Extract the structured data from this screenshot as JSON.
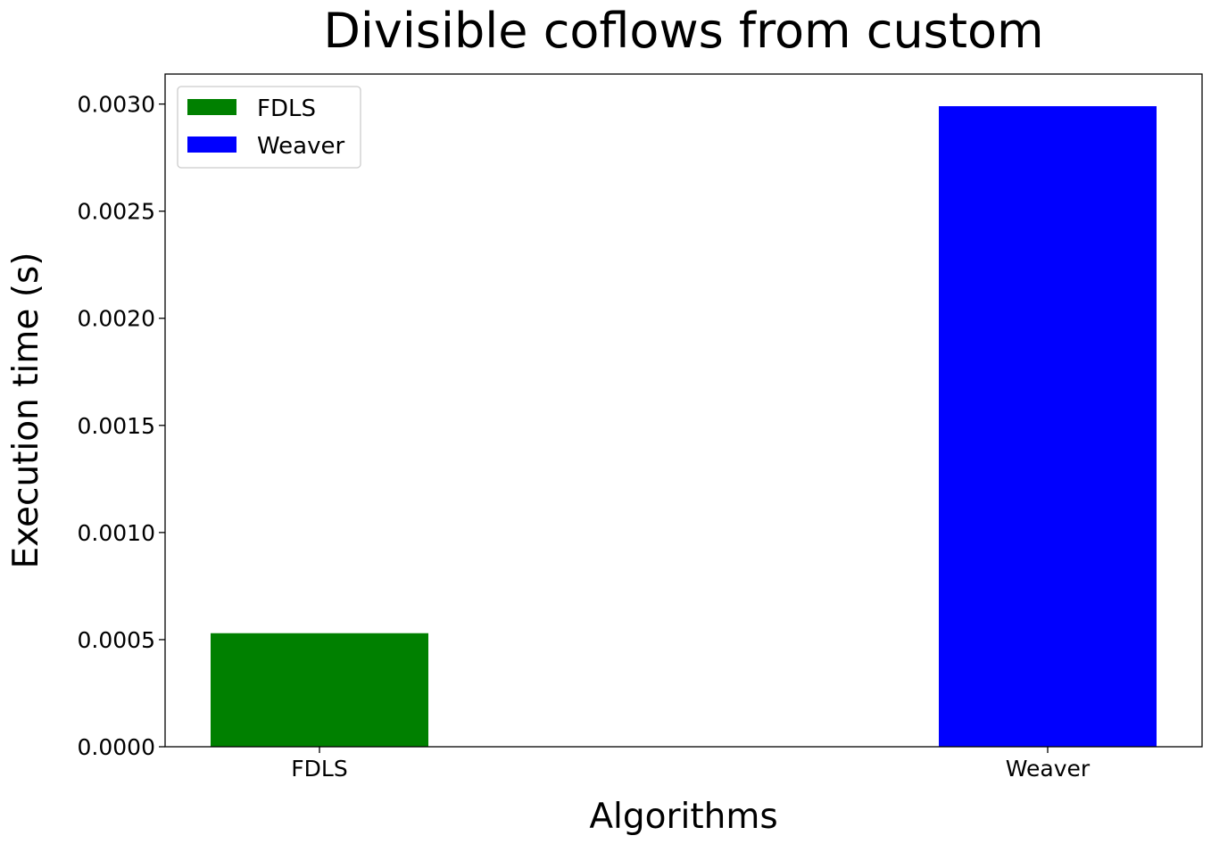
{
  "chart_data": {
    "type": "bar",
    "title": "Divisible coflows from custom",
    "xlabel": "Algorithms",
    "ylabel": "Execution time (s)",
    "categories": [
      "FDLS",
      "Weaver"
    ],
    "values": [
      0.00053,
      0.00299
    ],
    "colors": [
      "#008000",
      "#0000ff"
    ],
    "ylim": [
      0,
      0.00314
    ],
    "yticks": [
      0,
      0.0005,
      0.001,
      0.0015,
      0.002,
      0.0025,
      0.003
    ],
    "ytick_labels": [
      "0.0000",
      "0.0005",
      "0.0010",
      "0.0015",
      "0.0020",
      "0.0025",
      "0.0030"
    ],
    "legend": {
      "placement": "top-left",
      "entries": [
        {
          "label": "FDLS",
          "color": "#008000"
        },
        {
          "label": "Weaver",
          "color": "#0000ff"
        }
      ]
    },
    "grid": false
  }
}
